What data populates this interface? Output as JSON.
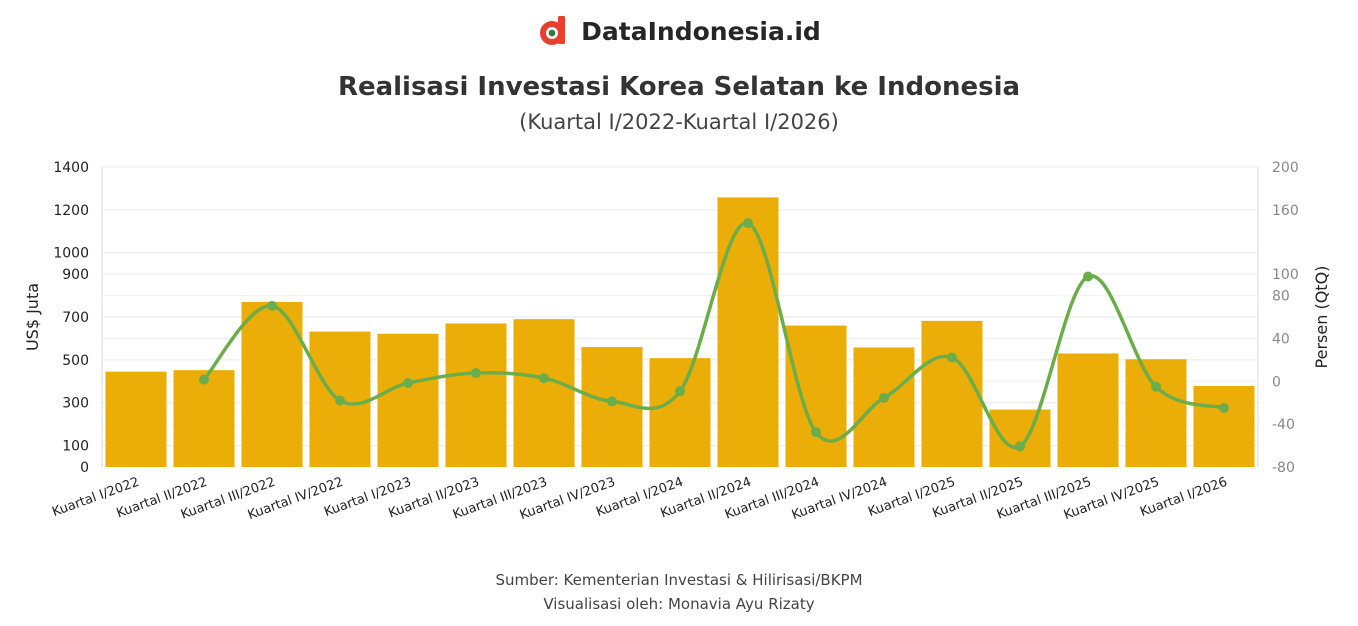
{
  "brand": {
    "name": "DataIndonesia.id",
    "logo_icon": "dataindonesia-logo-icon"
  },
  "title": "Realisasi Investasi Korea Selatan ke Indonesia",
  "subtitle": "(Kuartal I/2022-Kuartal I/2026)",
  "footer": {
    "source": "Sumber: Kementerian Investasi & Hilirisasi/BKPM",
    "credit": "Visualisasi oleh: Monavia Ayu Rizaty"
  },
  "chart_data": {
    "type": "bar",
    "categories": [
      "Kuartal I/2022",
      "Kuartal II/2022",
      "Kuartal III/2022",
      "Kuartal IV/2022",
      "Kuartal I/2023",
      "Kuartal II/2023",
      "Kuartal III/2023",
      "Kuartal IV/2023",
      "Kuartal I/2024",
      "Kuartal II/2024",
      "Kuartal III/2024",
      "Kuartal IV/2024",
      "Kuartal I/2025",
      "Kuartal II/2025",
      "Kuartal III/2025",
      "Kuartal IV/2025",
      "Kuartal I/2026"
    ],
    "series": [
      {
        "type": "bar",
        "axis": "left",
        "color": "#EBAE08",
        "values": [
          445,
          452,
          770,
          632,
          622,
          670,
          690,
          560,
          508,
          1258,
          660,
          558,
          682,
          268,
          530,
          503,
          378
        ]
      },
      {
        "type": "line",
        "axis": "right",
        "color": "#6BAD4A",
        "values": [
          null,
          1.6,
          70.4,
          -17.9,
          -1.6,
          7.7,
          3.0,
          -18.8,
          -9.3,
          147.6,
          -47.5,
          -15.5,
          22.2,
          -60.7,
          97.8,
          -5.1,
          -24.9
        ]
      }
    ],
    "ylabel": "US$ Juta",
    "y2label": "Persen (QtQ)",
    "ylim": [
      0,
      1400
    ],
    "y_ticks": [
      0,
      100,
      300,
      500,
      700,
      900,
      1000,
      1200,
      1400
    ],
    "y2lim": [
      -80,
      200
    ],
    "y2_ticks": [
      -80,
      -40,
      0,
      40,
      80,
      100,
      160,
      200
    ],
    "grid": true,
    "colors": {
      "bar": "#EBAE08",
      "line": "#6BAD4A",
      "grid": "#e6e6e6",
      "logo": "#e8402f"
    }
  }
}
